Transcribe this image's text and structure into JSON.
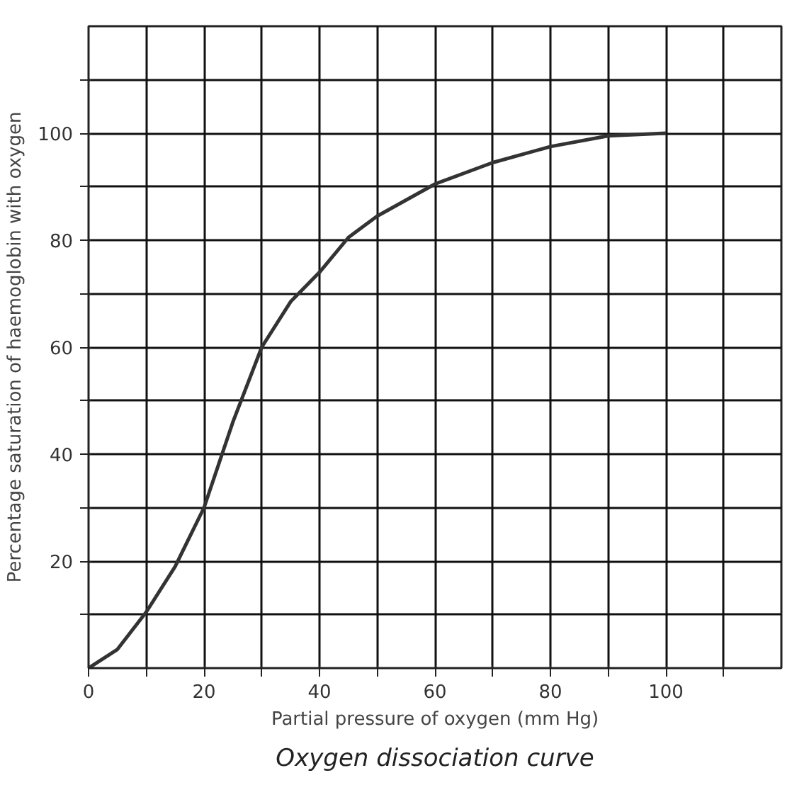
{
  "chart_data": {
    "type": "line",
    "title": "Oxygen dissociation curve",
    "xlabel": "Partial pressure of oxygen (mm Hg)",
    "ylabel": "Percentage saturation of haemoglobin with oxygen",
    "x": [
      0,
      5,
      10,
      15,
      20,
      25,
      30,
      35,
      40,
      45,
      50,
      60,
      70,
      80,
      90,
      100
    ],
    "series": [
      {
        "color": "#333333",
        "values": [
          0,
          3.5,
          10.5,
          19,
          30,
          46,
          60,
          68.5,
          74,
          80.5,
          84.5,
          90.5,
          94.5,
          97.5,
          99.5,
          100
        ]
      }
    ],
    "xlim": [
      0,
      120
    ],
    "ylim": [
      0,
      120
    ],
    "xticks": [
      0,
      {
        "value": 10,
        "label": null
      },
      20,
      {
        "value": 30,
        "label": null
      },
      40,
      {
        "value": 50,
        "label": null
      },
      60,
      {
        "value": 70,
        "label": null
      },
      80,
      {
        "value": 90,
        "label": null
      },
      100,
      {
        "value": 110,
        "label": null
      }
    ],
    "yticks": [
      {
        "value": 10,
        "label": null
      },
      20,
      {
        "value": 30,
        "label": null
      },
      40,
      {
        "value": 50,
        "label": null
      },
      60,
      {
        "value": 70,
        "label": null
      },
      80,
      {
        "value": 90,
        "label": null
      },
      100,
      {
        "value": 110,
        "label": null
      }
    ],
    "grid": true,
    "marker": "none",
    "line_style": "solid"
  }
}
